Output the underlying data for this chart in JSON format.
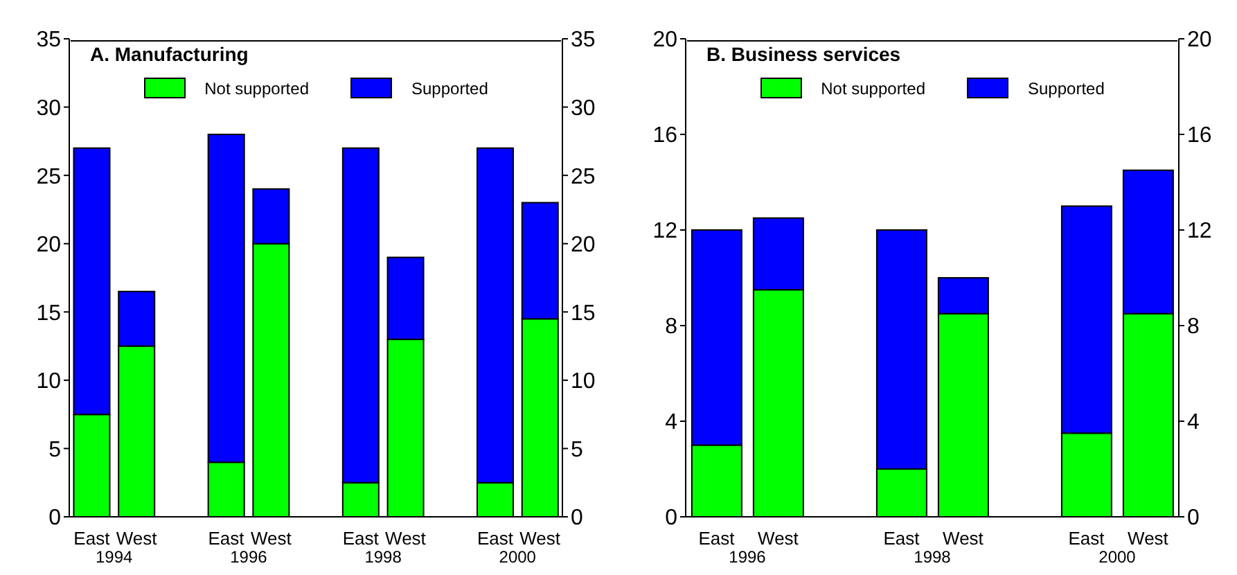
{
  "chart_data": [
    {
      "type": "bar",
      "title": "A. Manufacturing",
      "stacked": true,
      "categories": [
        "East",
        "West",
        null,
        "East",
        "West",
        null,
        "East",
        "West",
        null,
        "East",
        "West"
      ],
      "series": [
        {
          "name": "Not supported",
          "color": "#00ff00",
          "values": [
            7.5,
            12.5,
            null,
            4,
            20,
            null,
            2.5,
            13,
            null,
            2.5,
            14.5
          ]
        },
        {
          "name": "Supported",
          "color": "#0000ff",
          "values": [
            19.5,
            4,
            null,
            24,
            4,
            null,
            24.5,
            6,
            null,
            24.5,
            8.5
          ]
        }
      ],
      "ylim": [
        0,
        35
      ],
      "yticks": [
        0,
        5,
        10,
        15,
        20,
        25,
        30,
        35
      ],
      "y2lim": [
        0,
        35
      ],
      "y2ticks": [
        0,
        5,
        10,
        15,
        20,
        25,
        30,
        35
      ],
      "legend": "top",
      "grid": false,
      "annotations": [
        "1994",
        "1996",
        "1998",
        "2000"
      ]
    },
    {
      "type": "bar",
      "title": "B. Business services",
      "stacked": true,
      "categories": [
        "East",
        "West",
        null,
        "East",
        "West",
        null,
        "East",
        "West"
      ],
      "series": [
        {
          "name": "Not supported",
          "color": "#00ff00",
          "values": [
            3,
            9.5,
            null,
            2,
            8.5,
            null,
            3.5,
            8.5
          ]
        },
        {
          "name": "Supported",
          "color": "#0000ff",
          "values": [
            9,
            3,
            null,
            10,
            1.5,
            null,
            9.5,
            6
          ]
        }
      ],
      "ylim": [
        0,
        20
      ],
      "yticks": [
        0,
        4,
        8,
        12,
        16,
        20
      ],
      "y2lim": [
        0,
        20
      ],
      "y2ticks": [
        0,
        4,
        8,
        12,
        16,
        20
      ],
      "legend": "top",
      "grid": false,
      "annotations": [
        "1996",
        "1998",
        "2000"
      ]
    }
  ]
}
